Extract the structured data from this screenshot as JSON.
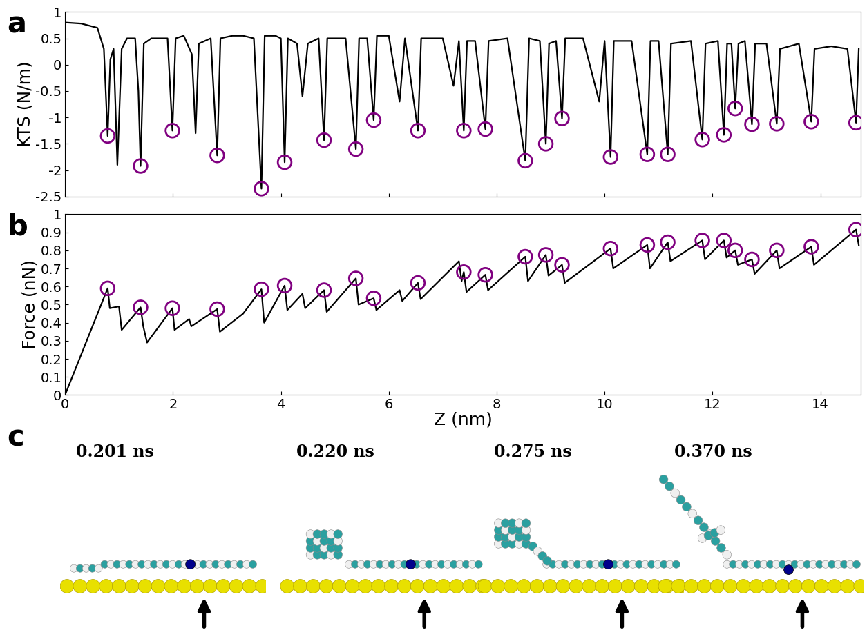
{
  "chart_data": [
    {
      "type": "line",
      "panel_label": "a",
      "y_label": "KTS (N/m)",
      "xlim": [
        0,
        14.75
      ],
      "xticks": [
        0,
        2,
        4,
        6,
        8,
        10,
        12,
        14
      ],
      "ylim": [
        -2.5,
        1
      ],
      "yticks": [
        -2.5,
        -2,
        -1.5,
        -1,
        -0.5,
        0,
        0.5,
        1
      ],
      "tick_labels": "y",
      "grid": false,
      "series": [
        {
          "type": "line",
          "color": "#000000",
          "line_style": "solid",
          "x": [
            0,
            0.3,
            0.6,
            0.72,
            0.79,
            0.84,
            0.9,
            0.97,
            1.05,
            1.15,
            1.3,
            1.36,
            1.4,
            1.46,
            1.6,
            1.9,
            1.99,
            2.05,
            2.2,
            2.35,
            2.42,
            2.48,
            2.7,
            2.82,
            2.88,
            3.1,
            3.3,
            3.5,
            3.64,
            3.7,
            3.9,
            4.0,
            4.07,
            4.13,
            4.3,
            4.4,
            4.5,
            4.7,
            4.8,
            4.86,
            5.2,
            5.39,
            5.45,
            5.6,
            5.72,
            5.78,
            6.0,
            6.2,
            6.3,
            6.54,
            6.6,
            7.0,
            7.2,
            7.3,
            7.39,
            7.45,
            7.6,
            7.79,
            7.85,
            8.2,
            8.53,
            8.6,
            8.8,
            8.91,
            8.97,
            9.1,
            9.21,
            9.27,
            9.6,
            9.9,
            10.0,
            10.11,
            10.17,
            10.5,
            10.79,
            10.85,
            11.0,
            11.17,
            11.23,
            11.6,
            11.81,
            11.87,
            12.1,
            12.21,
            12.27,
            12.35,
            12.42,
            12.48,
            12.6,
            12.73,
            12.79,
            13.0,
            13.19,
            13.25,
            13.6,
            13.83,
            13.89,
            14.2,
            14.5,
            14.66,
            14.71
          ],
          "values": [
            0.8,
            0.78,
            0.7,
            0.3,
            -1.35,
            0.1,
            0.3,
            -1.9,
            0.3,
            0.5,
            0.5,
            -0.5,
            -1.92,
            0.4,
            0.5,
            0.5,
            -1.25,
            0.5,
            0.55,
            0.2,
            -1.3,
            0.4,
            0.5,
            -1.72,
            0.5,
            0.55,
            0.55,
            0.5,
            -2.35,
            0.55,
            0.55,
            0.5,
            -1.85,
            0.5,
            0.4,
            -0.6,
            0.4,
            0.5,
            -1.43,
            0.5,
            0.5,
            -1.6,
            0.5,
            0.5,
            -1.05,
            0.55,
            0.55,
            -0.7,
            0.5,
            -1.25,
            0.5,
            0.5,
            -0.4,
            0.45,
            -1.25,
            0.45,
            0.45,
            -1.22,
            0.45,
            0.5,
            -1.82,
            0.5,
            0.45,
            -1.5,
            0.4,
            0.45,
            -1.02,
            0.5,
            0.5,
            -0.7,
            0.45,
            -1.75,
            0.45,
            0.45,
            -1.7,
            0.45,
            0.45,
            -1.7,
            0.4,
            0.45,
            -1.42,
            0.4,
            0.45,
            -1.33,
            0.4,
            0.4,
            -0.83,
            0.4,
            0.45,
            -1.13,
            0.4,
            0.4,
            -1.12,
            0.3,
            0.4,
            -1.08,
            0.3,
            0.35,
            0.3,
            -1.1,
            0.3
          ]
        },
        {
          "type": "scatter",
          "color": "#800080",
          "marker": "circle",
          "x": [
            0.79,
            1.4,
            1.99,
            2.82,
            3.64,
            4.07,
            4.8,
            5.39,
            5.72,
            6.54,
            7.39,
            7.79,
            8.53,
            8.91,
            9.21,
            10.11,
            10.79,
            11.17,
            11.81,
            12.21,
            12.42,
            12.73,
            13.19,
            13.83,
            14.66
          ],
          "values": [
            -1.35,
            -1.92,
            -1.25,
            -1.72,
            -2.35,
            -1.85,
            -1.43,
            -1.6,
            -1.05,
            -1.25,
            -1.25,
            -1.22,
            -1.82,
            -1.5,
            -1.02,
            -1.75,
            -1.7,
            -1.7,
            -1.42,
            -1.33,
            -0.83,
            -1.13,
            -1.12,
            -1.08,
            -1.1
          ]
        }
      ]
    },
    {
      "type": "line",
      "panel_label": "b",
      "x_label": "Z (nm)",
      "y_label": "Force (nN)",
      "xlim": [
        0,
        14.75
      ],
      "xticks": [
        0,
        2,
        4,
        6,
        8,
        10,
        12,
        14
      ],
      "ylim": [
        0,
        1
      ],
      "yticks": [
        0,
        0.1,
        0.2,
        0.3,
        0.4,
        0.5,
        0.6,
        0.7,
        0.8,
        0.9,
        1
      ],
      "grid": false,
      "series": [
        {
          "type": "line",
          "color": "#000000",
          "line_style": "solid",
          "x": [
            0,
            0.79,
            0.83,
            1.0,
            1.05,
            1.4,
            1.45,
            1.52,
            1.99,
            2.03,
            2.3,
            2.34,
            2.82,
            2.87,
            3.3,
            3.64,
            3.69,
            4.07,
            4.12,
            4.4,
            4.45,
            4.8,
            4.85,
            5.39,
            5.44,
            5.72,
            5.77,
            6.2,
            6.25,
            6.54,
            6.59,
            7.3,
            7.35,
            7.39,
            7.44,
            7.79,
            7.84,
            8.53,
            8.58,
            8.91,
            8.96,
            9.21,
            9.26,
            10.11,
            10.16,
            10.79,
            10.84,
            11.17,
            11.22,
            11.81,
            11.86,
            12.21,
            12.26,
            12.42,
            12.47,
            12.73,
            12.78,
            13.19,
            13.24,
            13.83,
            13.88,
            14.66,
            14.71
          ],
          "values": [
            0,
            0.59,
            0.48,
            0.49,
            0.36,
            0.485,
            0.38,
            0.29,
            0.48,
            0.36,
            0.42,
            0.38,
            0.475,
            0.35,
            0.45,
            0.585,
            0.4,
            0.605,
            0.47,
            0.56,
            0.48,
            0.58,
            0.46,
            0.645,
            0.5,
            0.535,
            0.47,
            0.58,
            0.52,
            0.62,
            0.53,
            0.74,
            0.63,
            0.68,
            0.57,
            0.665,
            0.58,
            0.765,
            0.63,
            0.775,
            0.66,
            0.72,
            0.62,
            0.81,
            0.7,
            0.83,
            0.7,
            0.845,
            0.74,
            0.855,
            0.75,
            0.855,
            0.76,
            0.8,
            0.72,
            0.75,
            0.67,
            0.8,
            0.7,
            0.82,
            0.72,
            0.915,
            0.83
          ]
        },
        {
          "type": "scatter",
          "color": "#800080",
          "marker": "circle",
          "x": [
            0.79,
            1.4,
            1.99,
            2.82,
            3.64,
            4.07,
            4.8,
            5.39,
            5.72,
            6.54,
            7.39,
            7.79,
            8.53,
            8.91,
            9.21,
            10.11,
            10.79,
            11.17,
            11.81,
            12.21,
            12.42,
            12.73,
            13.19,
            13.83,
            14.66
          ],
          "values": [
            0.59,
            0.485,
            0.48,
            0.475,
            0.585,
            0.605,
            0.58,
            0.645,
            0.535,
            0.62,
            0.68,
            0.665,
            0.765,
            0.775,
            0.72,
            0.81,
            0.83,
            0.845,
            0.855,
            0.855,
            0.8,
            0.75,
            0.8,
            0.82,
            0.915
          ]
        }
      ]
    }
  ],
  "panel_c": {
    "label": "c",
    "frames": [
      "0.201 ns",
      "0.220 ns",
      "0.275 ns",
      "0.370 ns"
    ]
  }
}
